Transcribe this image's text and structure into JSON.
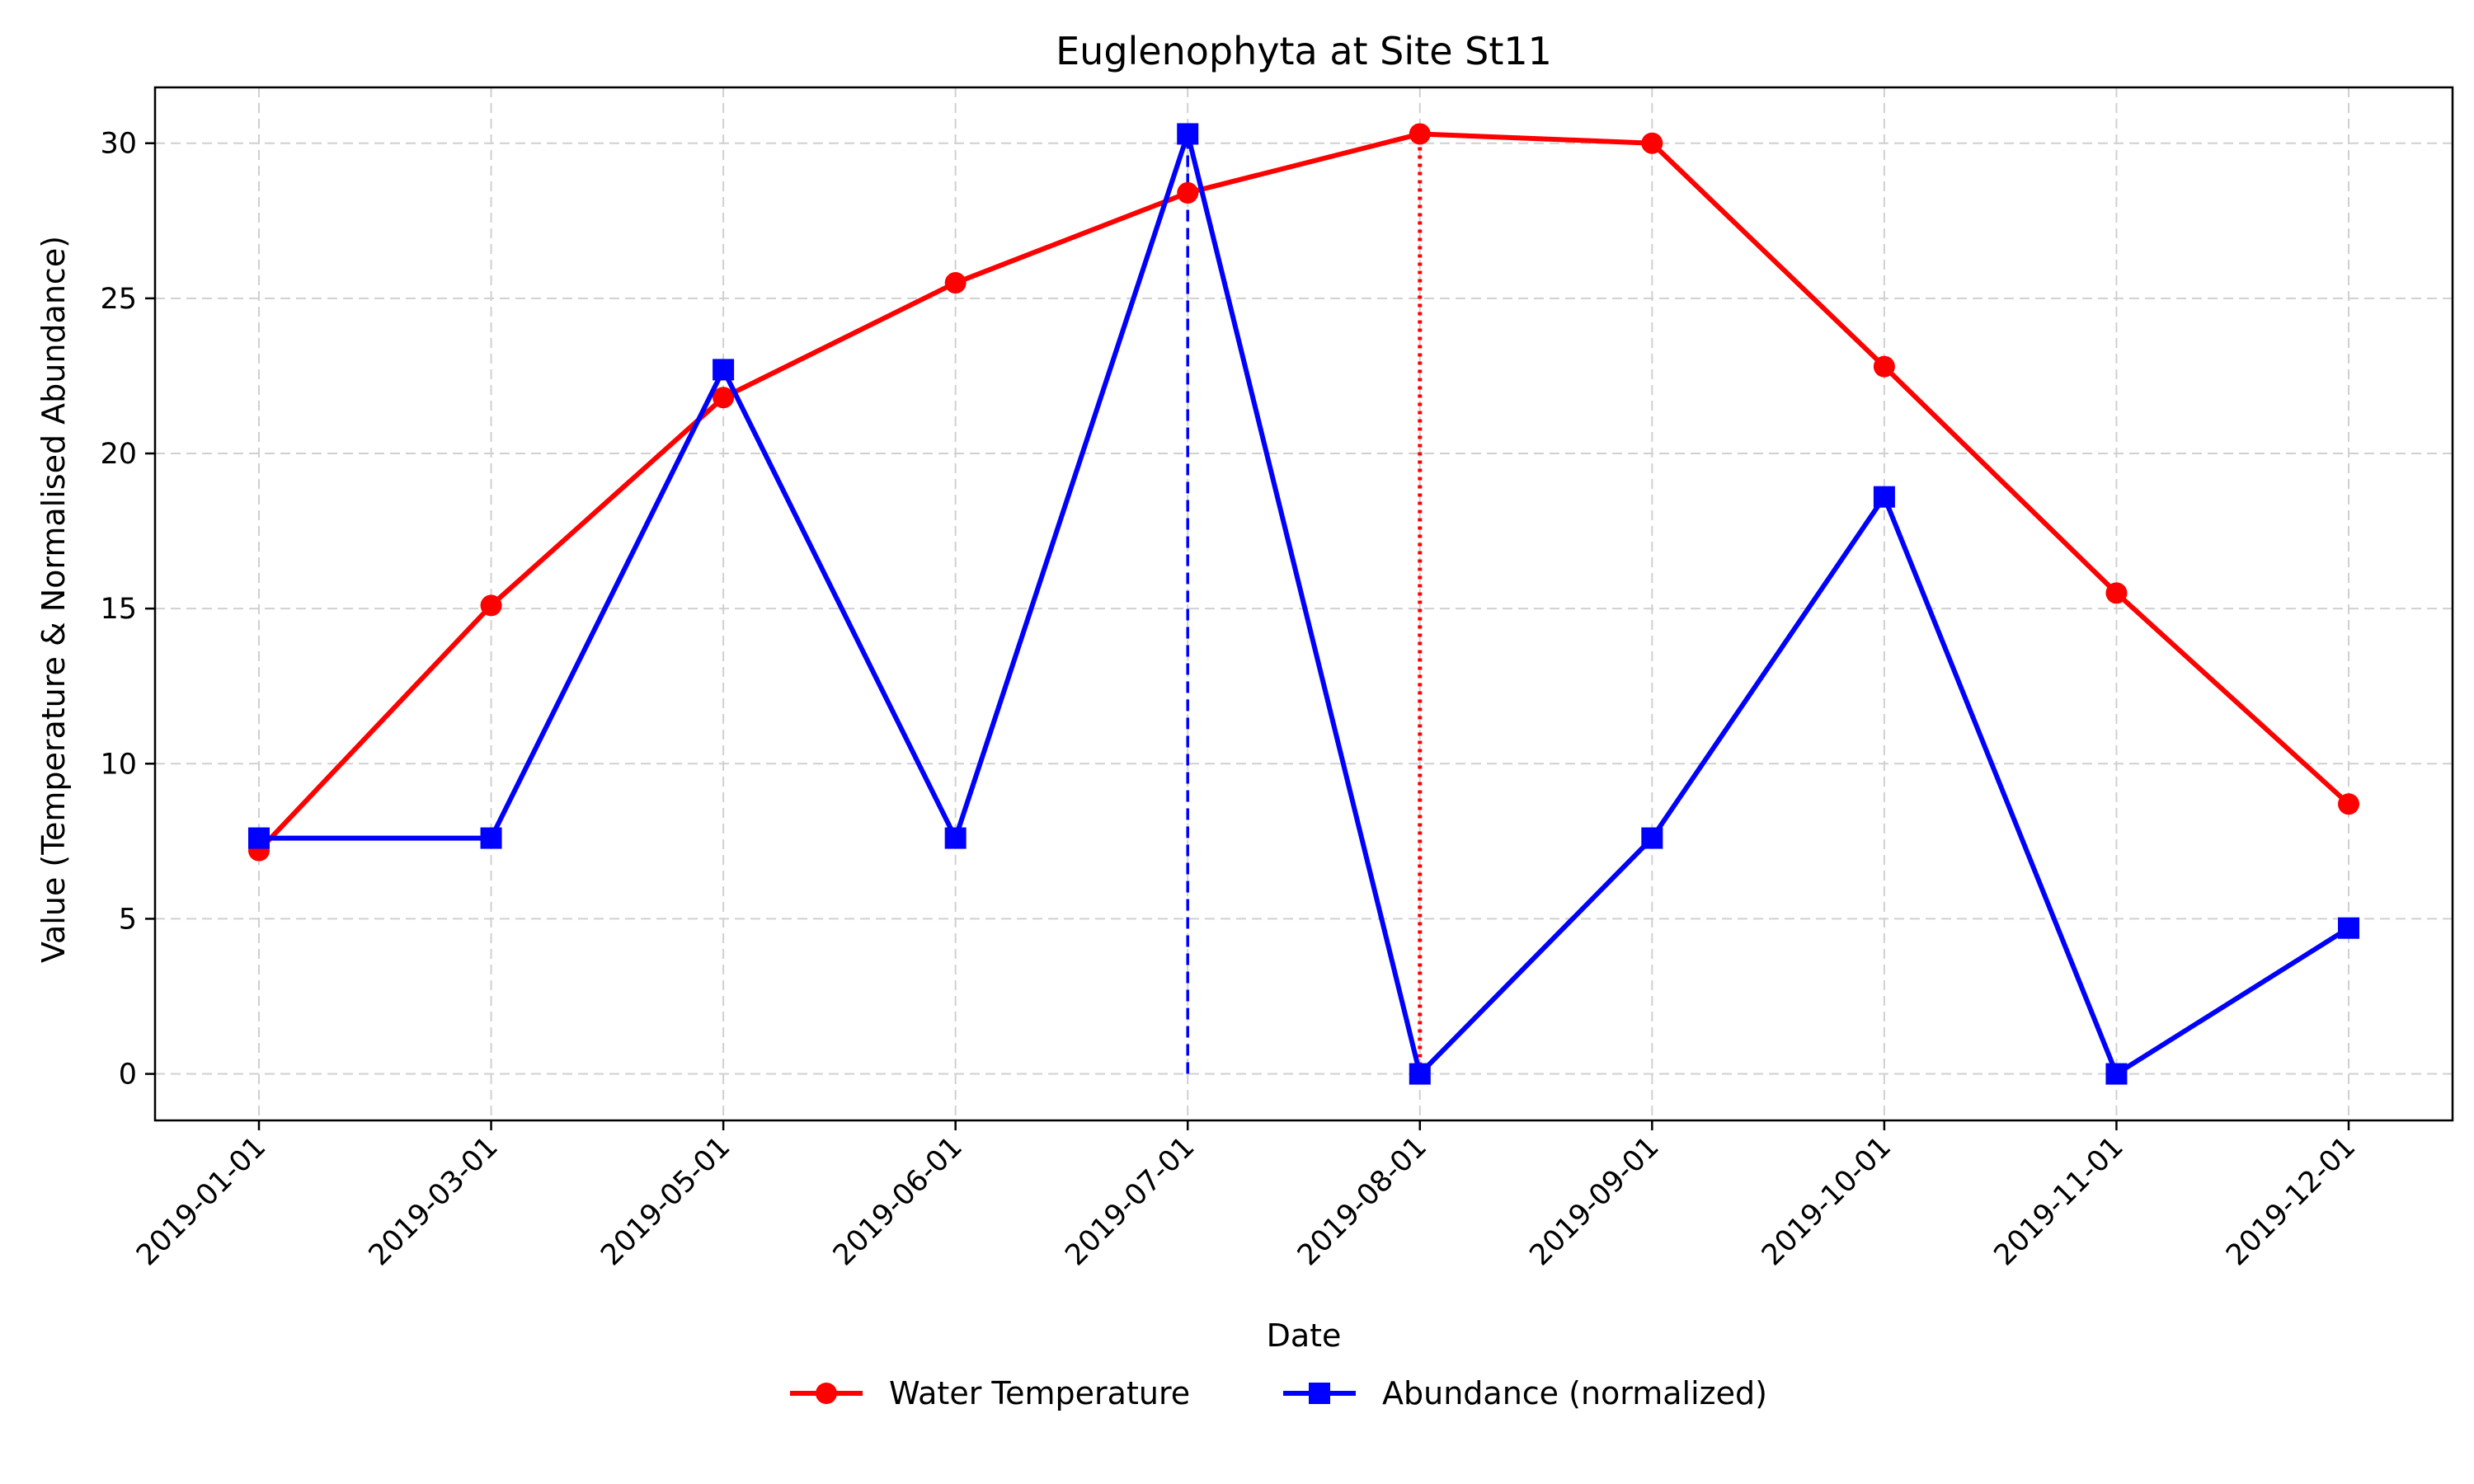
{
  "chart_data": {
    "type": "line",
    "title": "Euglenophyta at Site St11",
    "xlabel": "Date",
    "ylabel": "Value (Temperature & Normalised Abundance)",
    "categories": [
      "2019-01-01",
      "2019-03-01",
      "2019-05-01",
      "2019-06-01",
      "2019-07-01",
      "2019-08-01",
      "2019-09-01",
      "2019-10-01",
      "2019-11-01",
      "2019-12-01"
    ],
    "ylim": [
      -1.5,
      31.8
    ],
    "yticks": [
      0,
      5,
      10,
      15,
      20,
      25,
      30
    ],
    "grid": true,
    "legend_position": "bottom-center",
    "series": [
      {
        "name": "Water Temperature",
        "color": "#ff0000",
        "marker": "circle",
        "values": [
          7.2,
          15.1,
          21.8,
          25.5,
          28.4,
          30.3,
          30.0,
          22.8,
          15.5,
          8.7
        ]
      },
      {
        "name": "Abundance (normalized)",
        "color": "#0000ff",
        "marker": "square",
        "values": [
          7.6,
          7.6,
          22.7,
          7.6,
          30.3,
          0.0,
          7.6,
          18.6,
          0.0,
          4.7
        ]
      }
    ],
    "annotations": [
      {
        "category": "2019-07-01",
        "from": 0,
        "to": 30.3,
        "color": "#0000ff",
        "style": "dashed"
      },
      {
        "category": "2019-08-01",
        "from": 0,
        "to": 30.3,
        "color": "#ff0000",
        "style": "dotted"
      }
    ]
  }
}
